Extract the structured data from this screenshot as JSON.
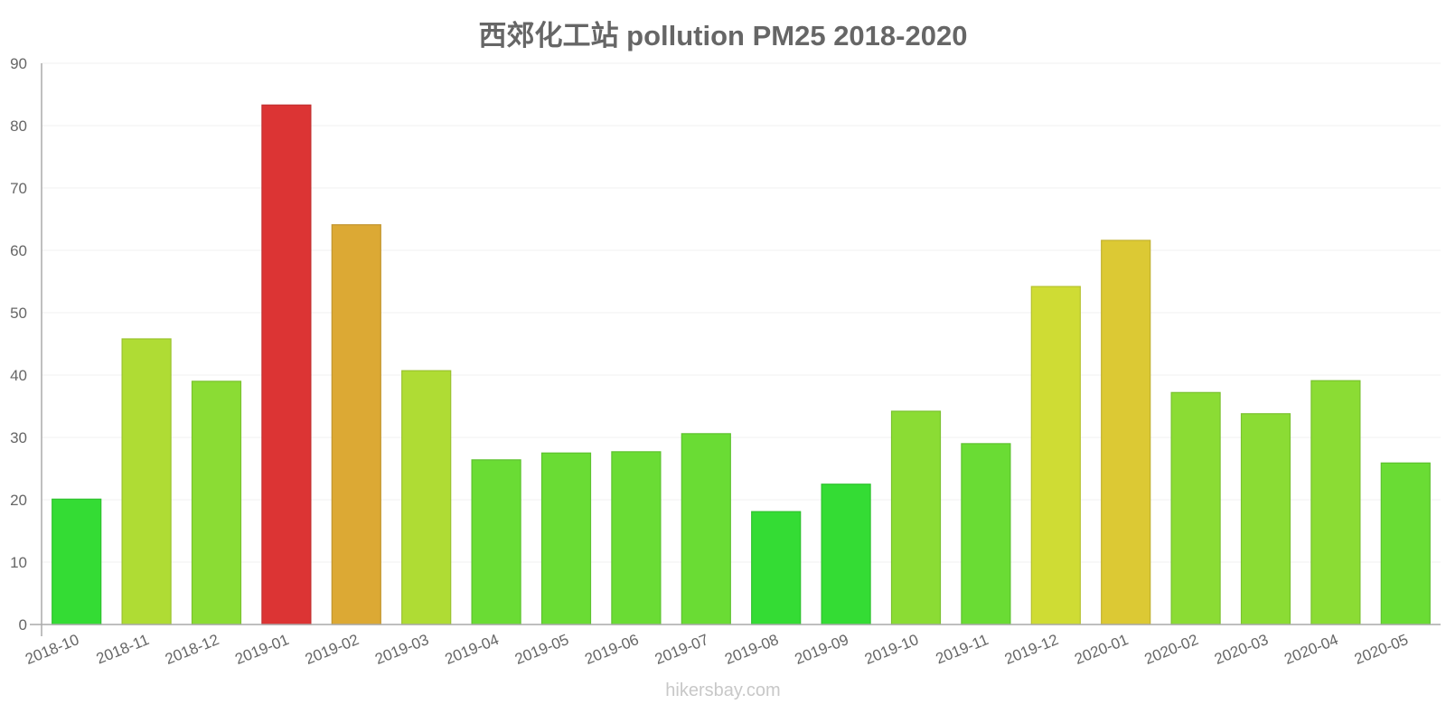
{
  "chart_data": {
    "type": "bar",
    "title": "西郊化工站 pollution PM25 2018-2020",
    "xlabel": "",
    "ylabel": "",
    "ylim": [
      0,
      90
    ],
    "yticks": [
      0,
      10,
      20,
      30,
      40,
      50,
      60,
      70,
      80,
      90
    ],
    "grid": true,
    "categories": [
      "2018-10",
      "2018-11",
      "2018-12",
      "2019-01",
      "2019-02",
      "2019-03",
      "2019-04",
      "2019-05",
      "2019-06",
      "2019-07",
      "2019-08",
      "2019-09",
      "2019-10",
      "2019-11",
      "2019-12",
      "2020-01",
      "2020-02",
      "2020-03",
      "2020-04",
      "2020-05"
    ],
    "values": [
      20.1,
      45.8,
      39.0,
      83.3,
      64.1,
      40.7,
      26.4,
      27.5,
      27.7,
      30.6,
      18.1,
      22.5,
      34.2,
      29.0,
      54.2,
      61.6,
      37.2,
      33.8,
      39.1,
      25.9
    ],
    "colors": [
      "#34dc34",
      "#afdc34",
      "#8bdc34",
      "#dc3434",
      "#dca934",
      "#afdc34",
      "#6adc34",
      "#6adc34",
      "#6adc34",
      "#6adc34",
      "#34dc34",
      "#34dc34",
      "#8bdc34",
      "#6adc34",
      "#cfdc34",
      "#dcc934",
      "#8bdc34",
      "#8bdc34",
      "#8bdc34",
      "#6adc34"
    ]
  },
  "watermark": "hikersbay.com"
}
